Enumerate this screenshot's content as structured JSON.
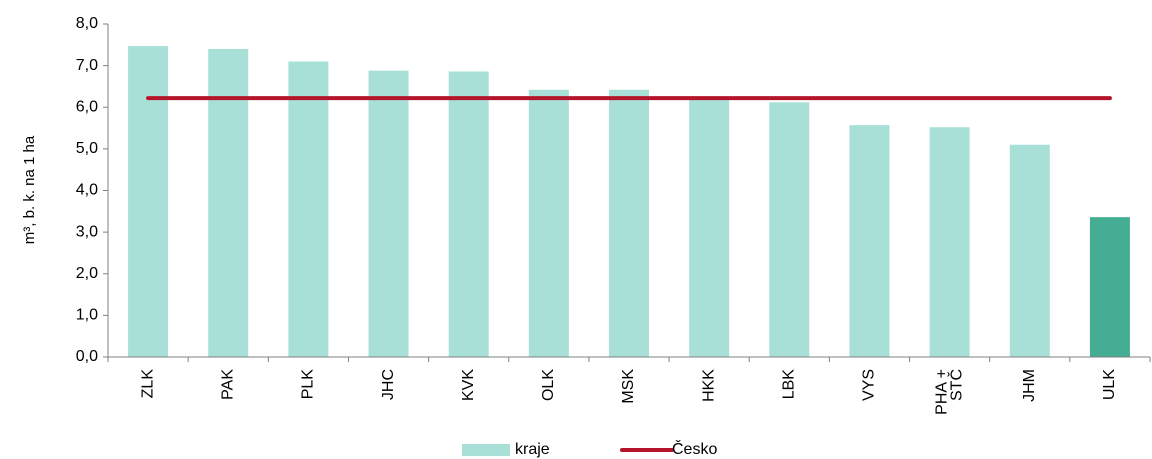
{
  "chart_data": {
    "type": "bar",
    "y_label": "m³, b. k. na 1 ha",
    "categories": [
      "ZLK",
      "PAK",
      "PLK",
      "JHC",
      "KVK",
      "OLK",
      "MSK",
      "HKK",
      "LBK",
      "VYS",
      [
        "PHA +",
        "STČ"
      ],
      "JHM",
      "ULK"
    ],
    "series": [
      {
        "name": "kraje",
        "type": "bar",
        "color": "#a8e0d8",
        "colors": [
          "#a8e0d8",
          "#a8e0d8",
          "#a8e0d8",
          "#a8e0d8",
          "#a8e0d8",
          "#a8e0d8",
          "#a8e0d8",
          "#a8e0d8",
          "#a8e0d8",
          "#a8e0d8",
          "#a8e0d8",
          "#a8e0d8",
          "#45ad94"
        ],
        "values": [
          7.47,
          7.4,
          7.1,
          6.88,
          6.86,
          6.42,
          6.42,
          6.2,
          6.12,
          5.57,
          5.52,
          5.1,
          3.36
        ]
      },
      {
        "name": "Česko",
        "type": "line",
        "color": "#b5152b",
        "values": [
          6.22,
          6.22,
          6.22,
          6.22,
          6.22,
          6.22,
          6.22,
          6.22,
          6.22,
          6.22,
          6.22,
          6.22,
          6.22
        ]
      }
    ],
    "ylim": [
      0,
      8
    ],
    "yticks": [
      {
        "value": 0,
        "label": "0,0"
      },
      {
        "value": 1,
        "label": "1,0"
      },
      {
        "value": 2,
        "label": "2,0"
      },
      {
        "value": 3,
        "label": "3,0"
      },
      {
        "value": 4,
        "label": "4,0"
      },
      {
        "value": 5,
        "label": "5,0"
      },
      {
        "value": 6,
        "label": "6,0"
      },
      {
        "value": 7,
        "label": "7,0"
      },
      {
        "value": 8,
        "label": "8,0"
      }
    ],
    "grid": false,
    "legend": "bottom"
  }
}
